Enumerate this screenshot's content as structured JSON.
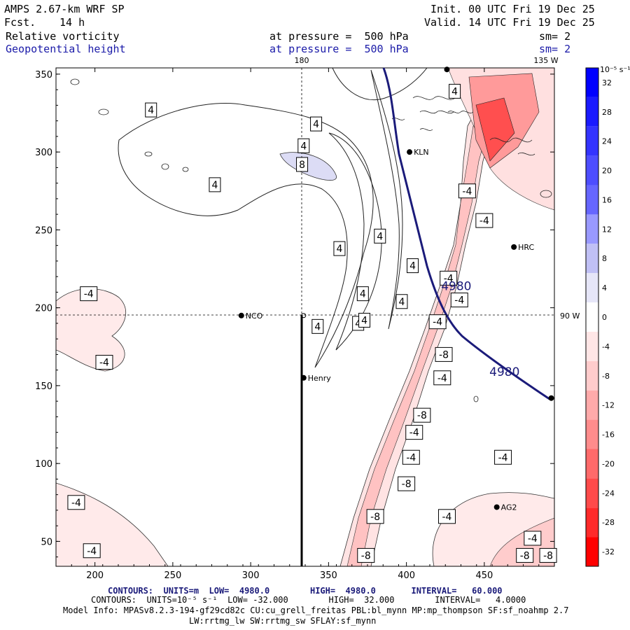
{
  "header": {
    "model": "AMPS 2.67-km WRF SP",
    "fcst_label": "Fcst.",
    "fcst_value": "14 h",
    "init": "Init. 00 UTC Fri 19 Dec 25",
    "valid": "Valid. 14 UTC Fri 19 Dec 25",
    "field1_name": "Relative vorticity",
    "field1_level": "at pressure =  500 hPa",
    "field1_sm": "sm= 2",
    "field2_name": "Geopotential height",
    "field2_level": "at pressure =  500 hPa",
    "field2_sm": "sm= 2"
  },
  "footer": {
    "line1": "CONTOURS:  UNITS=m  LOW=  4980.0        HIGH=  4980.0       INTERVAL=   60.000",
    "line2": "CONTOURS:  UNITS=10⁻⁵ s⁻¹  LOW= -32.000        HIGH=  32.000        INTERVAL=   4.0000",
    "line3": "Model Info: MPASv8.2.3-194-gf29cd82c CU:cu_grell_freitas PBL:bl_mynn MP:mp_thompson SF:sf_noahmp 2.7",
    "line4": "LW:rrtmg_lw SW:rrtmg_sw SFLAY:sf_mynn"
  },
  "chart_data": {
    "type": "contour map",
    "x_ticks": [
      "200",
      "250",
      "300",
      "350",
      "400",
      "450"
    ],
    "y_ticks": [
      "50",
      "100",
      "150",
      "200",
      "250",
      "300",
      "350"
    ],
    "xlim": [
      175,
      495
    ],
    "ylim": [
      34,
      354
    ],
    "longitude_labels": {
      "top_180": "180",
      "top_135w": "135 W",
      "right_90w": "90 W"
    },
    "colorbar": {
      "unit_label": "10⁻⁵ s⁻¹",
      "levels": [
        32,
        28,
        24,
        20,
        16,
        12,
        8,
        4,
        0,
        -4,
        -8,
        -12,
        -16,
        -20,
        -24,
        -28,
        -32
      ],
      "colors": [
        "#0000ff",
        "#1a1aff",
        "#3333ff",
        "#4d4dff",
        "#6666ff",
        "#9999ff",
        "#c0c0f5",
        "#e6e6f8",
        "#ffffff",
        "#ffe6e6",
        "#ffcccc",
        "#ffaaaa",
        "#ff8c8c",
        "#ff6a6a",
        "#ff4a4a",
        "#ff2a2a",
        "#ff0000"
      ]
    },
    "height_contour": {
      "value": "4980",
      "label_points": [
        [
          432,
          214
        ],
        [
          463,
          159
        ]
      ]
    },
    "vorticity_labels": [
      {
        "text": "4",
        "x": 236,
        "y": 327
      },
      {
        "text": "4",
        "x": 342,
        "y": 318
      },
      {
        "text": "4",
        "x": 334,
        "y": 304
      },
      {
        "text": "8",
        "x": 333,
        "y": 292
      },
      {
        "text": "4",
        "x": 277,
        "y": 279
      },
      {
        "text": "4",
        "x": 431,
        "y": 339
      },
      {
        "text": "4",
        "x": 383,
        "y": 246
      },
      {
        "text": "4",
        "x": 404,
        "y": 227
      },
      {
        "text": "4",
        "x": 357,
        "y": 238
      },
      {
        "text": "4",
        "x": 372,
        "y": 209
      },
      {
        "text": "4",
        "x": 369,
        "y": 190
      },
      {
        "text": "4",
        "x": 397,
        "y": 204
      },
      {
        "text": "4",
        "x": 343,
        "y": 188
      },
      {
        "text": "4",
        "x": 373,
        "y": 192
      },
      {
        "text": "-4",
        "x": 196,
        "y": 209
      },
      {
        "text": "-4",
        "x": 206,
        "y": 165
      },
      {
        "text": "-4",
        "x": 188,
        "y": 75
      },
      {
        "text": "-4",
        "x": 198,
        "y": 44
      },
      {
        "text": "-4",
        "x": 439,
        "y": 275
      },
      {
        "text": "-4",
        "x": 450,
        "y": 256
      },
      {
        "text": "-4",
        "x": 427,
        "y": 219
      },
      {
        "text": "-4",
        "x": 434,
        "y": 205
      },
      {
        "text": "-4",
        "x": 420,
        "y": 191
      },
      {
        "text": "-8",
        "x": 424,
        "y": 170
      },
      {
        "text": "-4",
        "x": 423,
        "y": 155
      },
      {
        "text": "-8",
        "x": 410,
        "y": 131
      },
      {
        "text": "-4",
        "x": 405,
        "y": 120
      },
      {
        "text": "-4",
        "x": 403,
        "y": 104
      },
      {
        "text": "-8",
        "x": 400,
        "y": 87
      },
      {
        "text": "-8",
        "x": 380,
        "y": 66
      },
      {
        "text": "-8",
        "x": 374,
        "y": 41
      },
      {
        "text": "-4",
        "x": 462,
        "y": 104
      },
      {
        "text": "-4",
        "x": 426,
        "y": 66
      },
      {
        "text": "-4",
        "x": 481,
        "y": 52
      },
      {
        "text": "-8",
        "x": 476,
        "y": 41
      },
      {
        "text": "-8",
        "x": 491,
        "y": 41
      }
    ],
    "stations": [
      {
        "name": "NCO",
        "x": 294,
        "y": 195
      },
      {
        "name": "Henry",
        "x": 334,
        "y": 155
      },
      {
        "name": "KLN",
        "x": 402,
        "y": 300
      },
      {
        "name": "HRC",
        "x": 469,
        "y": 239
      },
      {
        "name": "AG2",
        "x": 458,
        "y": 72
      },
      {
        "name": "",
        "x": 493,
        "y": 142
      },
      {
        "name": "",
        "x": 426,
        "y": 353
      }
    ]
  }
}
